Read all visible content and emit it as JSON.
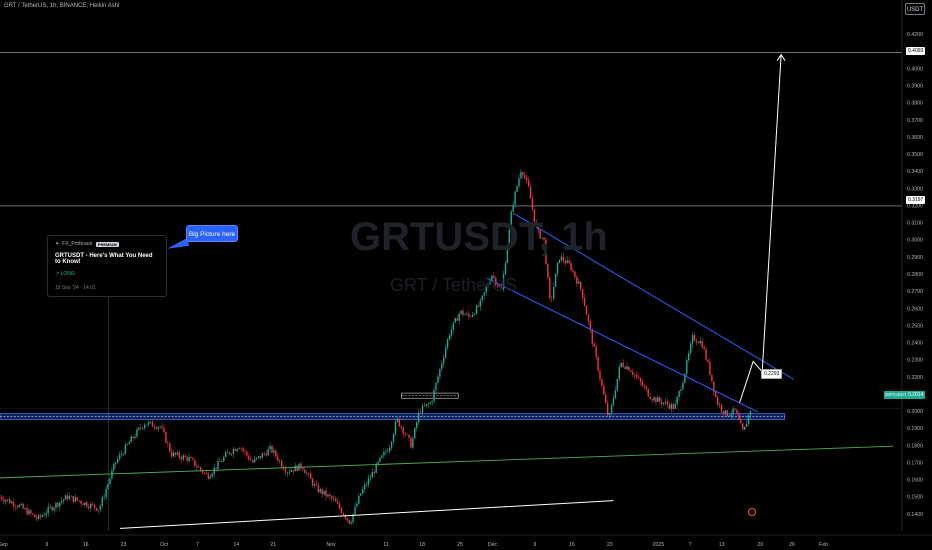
{
  "header": {
    "title": "GRT / TetherUS, 1h, BINANCE, Heikin Ashi",
    "unit_button": "USDT"
  },
  "watermark": {
    "symbol": "GRTUSDT, 1h",
    "name": "GRT / TetherUS"
  },
  "idea_card": {
    "author": "FX_Professor",
    "badge": "PREMIUM",
    "title": "GRTUSDT - Here's What You Need to Know!",
    "direction": "LONG",
    "date": "19 Sep '24 · 14:01"
  },
  "callout": {
    "text": "Big Picture here"
  },
  "price_tag": {
    "text": "0.2293"
  },
  "levels": [
    {
      "price": 0.4093,
      "label": "0.4093"
    },
    {
      "price": 0.3197,
      "label": "0.3197"
    }
  ],
  "current": {
    "symbol": "GRTUSDT",
    "price": 0.2014,
    "label": "0.2014"
  },
  "colors": {
    "up": "#22ab94",
    "down": "#f23645",
    "channel": "#2962ff",
    "support": "#4caf50",
    "bg": "#000000"
  },
  "chart_data": {
    "type": "candlestick",
    "y_axis": {
      "min": 0.13,
      "max": 0.43,
      "ticks": [
        "0.4300",
        "0.4200",
        "0.4100",
        "0.4000",
        "0.3900",
        "0.3800",
        "0.3700",
        "0.3600",
        "0.3500",
        "0.3400",
        "0.3300",
        "0.3200",
        "0.3100",
        "0.3000",
        "0.2900",
        "0.2800",
        "0.2700",
        "0.2600",
        "0.2500",
        "0.2400",
        "0.2300",
        "0.2200",
        "0.2100",
        "0.2000",
        "0.1900",
        "0.1800",
        "0.1700",
        "0.1600",
        "0.1500",
        "0.1400",
        "0.1300"
      ]
    },
    "x_axis": {
      "ticks": [
        {
          "label": "Sep",
          "pos": 0.0
        },
        {
          "label": "9",
          "pos": 0.052
        },
        {
          "label": "16",
          "pos": 0.095
        },
        {
          "label": "23",
          "pos": 0.137
        },
        {
          "label": "Oct",
          "pos": 0.182
        },
        {
          "label": "7",
          "pos": 0.219
        },
        {
          "label": "14",
          "pos": 0.262
        },
        {
          "label": "21",
          "pos": 0.303
        },
        {
          "label": "Nov",
          "pos": 0.367
        },
        {
          "label": "11",
          "pos": 0.428
        },
        {
          "label": "18",
          "pos": 0.468
        },
        {
          "label": "25",
          "pos": 0.51
        },
        {
          "label": "Dec",
          "pos": 0.546
        },
        {
          "label": "9",
          "pos": 0.593
        },
        {
          "label": "16",
          "pos": 0.634
        },
        {
          "label": "23",
          "pos": 0.676
        },
        {
          "label": "2025",
          "pos": 0.73
        },
        {
          "label": "7",
          "pos": 0.765
        },
        {
          "label": "13",
          "pos": 0.8
        },
        {
          "label": "20",
          "pos": 0.843
        },
        {
          "label": "26",
          "pos": 0.878
        },
        {
          "label": "Feb",
          "pos": 0.913
        }
      ]
    },
    "price_path": [
      [
        0.0,
        0.15
      ],
      [
        0.02,
        0.145
      ],
      [
        0.042,
        0.137
      ],
      [
        0.055,
        0.143
      ],
      [
        0.075,
        0.15
      ],
      [
        0.09,
        0.147
      ],
      [
        0.11,
        0.143
      ],
      [
        0.128,
        0.17
      ],
      [
        0.145,
        0.183
      ],
      [
        0.16,
        0.193
      ],
      [
        0.178,
        0.191
      ],
      [
        0.19,
        0.175
      ],
      [
        0.21,
        0.172
      ],
      [
        0.23,
        0.162
      ],
      [
        0.252,
        0.175
      ],
      [
        0.265,
        0.18
      ],
      [
        0.28,
        0.17
      ],
      [
        0.3,
        0.178
      ],
      [
        0.318,
        0.165
      ],
      [
        0.335,
        0.168
      ],
      [
        0.35,
        0.155
      ],
      [
        0.37,
        0.148
      ],
      [
        0.388,
        0.135
      ],
      [
        0.4,
        0.152
      ],
      [
        0.42,
        0.17
      ],
      [
        0.432,
        0.18
      ],
      [
        0.44,
        0.195
      ],
      [
        0.448,
        0.188
      ],
      [
        0.456,
        0.18
      ],
      [
        0.465,
        0.2
      ],
      [
        0.478,
        0.205
      ],
      [
        0.488,
        0.225
      ],
      [
        0.498,
        0.245
      ],
      [
        0.51,
        0.258
      ],
      [
        0.52,
        0.255
      ],
      [
        0.532,
        0.262
      ],
      [
        0.545,
        0.28
      ],
      [
        0.556,
        0.27
      ],
      [
        0.568,
        0.32
      ],
      [
        0.578,
        0.342
      ],
      [
        0.586,
        0.33
      ],
      [
        0.595,
        0.305
      ],
      [
        0.603,
        0.3
      ],
      [
        0.61,
        0.262
      ],
      [
        0.62,
        0.29
      ],
      [
        0.632,
        0.285
      ],
      [
        0.645,
        0.27
      ],
      [
        0.655,
        0.245
      ],
      [
        0.665,
        0.22
      ],
      [
        0.675,
        0.195
      ],
      [
        0.688,
        0.228
      ],
      [
        0.698,
        0.225
      ],
      [
        0.712,
        0.215
      ],
      [
        0.722,
        0.208
      ],
      [
        0.735,
        0.205
      ],
      [
        0.748,
        0.202
      ],
      [
        0.758,
        0.22
      ],
      [
        0.768,
        0.243
      ],
      [
        0.778,
        0.24
      ],
      [
        0.786,
        0.225
      ],
      [
        0.795,
        0.205
      ],
      [
        0.805,
        0.198
      ],
      [
        0.815,
        0.2
      ],
      [
        0.824,
        0.187
      ],
      [
        0.832,
        0.201
      ]
    ],
    "annotations": [
      {
        "type": "channel-upper",
        "from": [
          0.57,
          0.3152
        ],
        "to": [
          0.88,
          0.2185
        ]
      },
      {
        "type": "channel-lower",
        "from": [
          0.54,
          0.2775
        ],
        "to": [
          0.84,
          0.1995
        ]
      },
      {
        "type": "support-line",
        "from": [
          0.0,
          0.161
        ],
        "to": [
          0.99,
          0.1795
        ]
      },
      {
        "type": "lower-trendline",
        "from": [
          0.133,
          0.1315
        ],
        "to": [
          0.68,
          0.1477
        ]
      },
      {
        "type": "projection-arrow",
        "points": [
          [
            0.82,
            0.205
          ],
          [
            0.835,
            0.229
          ],
          [
            0.845,
            0.223
          ],
          [
            0.866,
            0.408
          ]
        ]
      },
      {
        "type": "support-zone",
        "low": 0.195,
        "high": 0.1985,
        "from": 0.0,
        "to": 0.87
      },
      {
        "type": "resistance-box",
        "low": 0.2075,
        "high": 0.2105,
        "from": 0.445,
        "to": 0.508
      }
    ]
  }
}
